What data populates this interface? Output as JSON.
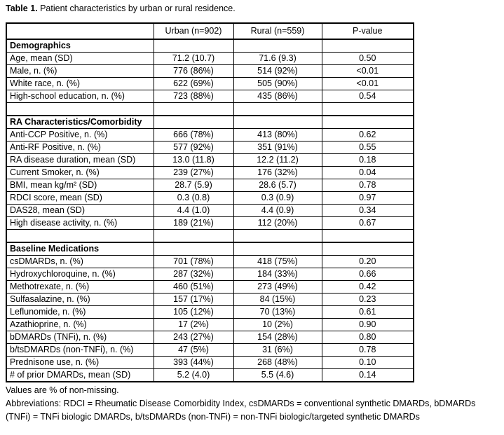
{
  "title": {
    "prefix": "Table 1.",
    "rest": " Patient characteristics by urban or rural residence."
  },
  "table": {
    "header": {
      "col0": "",
      "col1": "Urban (n=902)",
      "col2": "Rural (n=559)",
      "col3": "P-value"
    },
    "rows": [
      {
        "type": "section",
        "label": "Demographics",
        "urban": "",
        "rural": "",
        "p": ""
      },
      {
        "type": "data",
        "label": "Age, mean (SD)",
        "urban": "71.2 (10.7)",
        "rural": "71.6 (9.3)",
        "p": "0.50"
      },
      {
        "type": "data",
        "label": "Male, n. (%)",
        "urban": "776 (86%)",
        "rural": "514 (92%)",
        "p": "<0.01"
      },
      {
        "type": "data",
        "label": "White race, n. (%)",
        "urban": "622 (69%)",
        "rural": "505 (90%)",
        "p": "<0.01"
      },
      {
        "type": "data",
        "label": "High-school education, n. (%)",
        "urban": "723 (88%)",
        "rural": "435 (86%)",
        "p": "0.54"
      },
      {
        "type": "spacer"
      },
      {
        "type": "section",
        "label": "RA Characteristics/Comorbidity",
        "urban": "",
        "rural": "",
        "p": ""
      },
      {
        "type": "data",
        "label": "Anti-CCP Positive, n. (%)",
        "urban": "666 (78%)",
        "rural": "413 (80%)",
        "p": "0.62"
      },
      {
        "type": "data",
        "label": "Anti-RF Positive, n. (%)",
        "urban": "577 (92%)",
        "rural": "351 (91%)",
        "p": "0.55"
      },
      {
        "type": "data",
        "label": "RA disease duration, mean (SD)",
        "urban": "13.0 (11.8)",
        "rural": "12.2 (11.2)",
        "p": "0.18"
      },
      {
        "type": "data",
        "label": "Current Smoker, n. (%)",
        "urban": "239 (27%)",
        "rural": "176 (32%)",
        "p": "0.04"
      },
      {
        "type": "data",
        "label": "BMI, mean kg/m² (SD)",
        "urban": "28.7 (5.9)",
        "rural": "28.6 (5.7)",
        "p": "0.78"
      },
      {
        "type": "data",
        "label": "RDCI score, mean (SD)",
        "urban": "0.3 (0.8)",
        "rural": "0.3 (0.9)",
        "p": "0.97"
      },
      {
        "type": "data",
        "label": "DAS28, mean (SD)",
        "urban": "4.4 (1.0)",
        "rural": "4.4 (0.9)",
        "p": "0.34"
      },
      {
        "type": "data",
        "label": "High disease activity, n. (%)",
        "urban": "189 (21%)",
        "rural": "112 (20%)",
        "p": "0.67"
      },
      {
        "type": "spacer"
      },
      {
        "type": "section",
        "label": "Baseline Medications",
        "urban": "",
        "rural": "",
        "p": ""
      },
      {
        "type": "data",
        "label": "csDMARDs, n. (%)",
        "urban": "701 (78%)",
        "rural": "418 (75%)",
        "p": "0.20"
      },
      {
        "type": "data",
        "indent": true,
        "label": "Hydroxychloroquine, n. (%)",
        "urban": "287 (32%)",
        "rural": "184 (33%)",
        "p": "0.66"
      },
      {
        "type": "data",
        "indent": true,
        "label": "Methotrexate, n. (%)",
        "urban": "460 (51%)",
        "rural": "273 (49%)",
        "p": "0.42"
      },
      {
        "type": "data",
        "indent": true,
        "label": "Sulfasalazine, n. (%)",
        "urban": "157 (17%)",
        "rural": "84 (15%)",
        "p": "0.23"
      },
      {
        "type": "data",
        "indent": true,
        "label": "Leflunomide, n. (%)",
        "urban": "105 (12%)",
        "rural": "70 (13%)",
        "p": "0.61"
      },
      {
        "type": "data",
        "indent": true,
        "label": "Azathioprine, n. (%)",
        "urban": "17 (2%)",
        "rural": "10 (2%)",
        "p": "0.90"
      },
      {
        "type": "data",
        "label": "bDMARDs (TNFi), n. (%)",
        "urban": "243 (27%)",
        "rural": "154 (28%)",
        "p": "0.80"
      },
      {
        "type": "data",
        "label": "b/tsDMARDs (non-TNFi), n. (%)",
        "urban": "47 (5%)",
        "rural": "31 (6%)",
        "p": "0.78"
      },
      {
        "type": "data",
        "label": "Prednisone use, n. (%)",
        "urban": "393 (44%)",
        "rural": "268 (48%)",
        "p": "0.10"
      },
      {
        "type": "data",
        "label": "# of prior DMARDs, mean (SD)",
        "urban": "5.2 (4.0)",
        "rural": "5.5 (4.6)",
        "p": "0.14"
      }
    ]
  },
  "footnotes": {
    "values_note": "Values are % of non-missing.",
    "abbreviations": "Abbreviations: RDCI = Rheumatic Disease Comorbidity Index, csDMARDs = conventional synthetic DMARDs, bDMARDs (TNFi) = TNFi biologic DMARDs, b/tsDMARDs (non-TNFi) = non-TNFi biologic/targeted synthetic DMARDs"
  },
  "colors": {
    "background": "#ffffff",
    "text": "#000000",
    "border": "#000000"
  }
}
